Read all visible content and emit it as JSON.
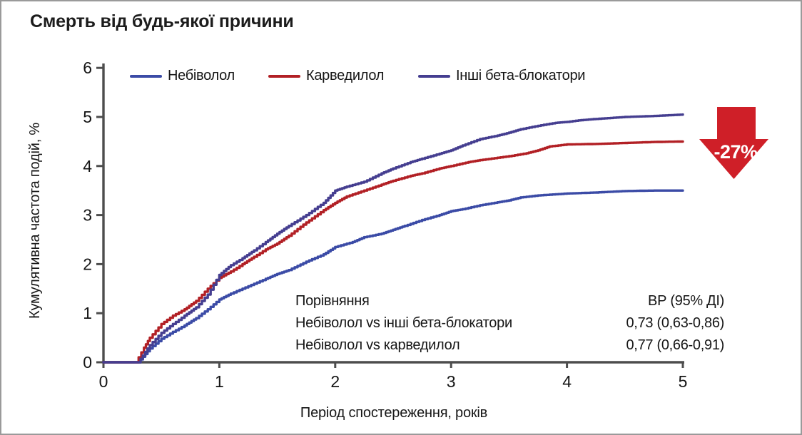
{
  "title": "Смерть від будь-якої причини",
  "chart_data": {
    "type": "line",
    "subtype": "cumulative-incidence-step-curves",
    "title": "Смерть від будь-якої причини",
    "xlabel": "Період спостереження, років",
    "ylabel": "Кумулятивна частота подій, %",
    "xlim": [
      0,
      5
    ],
    "ylim": [
      0,
      6
    ],
    "x_ticks": [
      0,
      1,
      2,
      3,
      4,
      5
    ],
    "y_ticks": [
      0,
      1,
      2,
      3,
      4,
      5,
      6
    ],
    "grid": false,
    "legend_position": "top-inside",
    "axis_color": "#4d4d4d",
    "series": [
      {
        "name": "Небіволол",
        "color": "#3b4ba6",
        "points": [
          [
            0,
            0
          ],
          [
            0.3,
            0
          ],
          [
            0.4,
            0.28
          ],
          [
            0.5,
            0.48
          ],
          [
            0.6,
            0.62
          ],
          [
            0.7,
            0.75
          ],
          [
            0.8,
            0.9
          ],
          [
            0.9,
            1.08
          ],
          [
            1.0,
            1.28
          ],
          [
            1.1,
            1.4
          ],
          [
            1.25,
            1.55
          ],
          [
            1.4,
            1.7
          ],
          [
            1.5,
            1.8
          ],
          [
            1.6,
            1.88
          ],
          [
            1.75,
            2.05
          ],
          [
            1.9,
            2.2
          ],
          [
            2.0,
            2.35
          ],
          [
            2.15,
            2.45
          ],
          [
            2.25,
            2.55
          ],
          [
            2.4,
            2.62
          ],
          [
            2.5,
            2.7
          ],
          [
            2.6,
            2.78
          ],
          [
            2.75,
            2.9
          ],
          [
            2.9,
            3.0
          ],
          [
            3.0,
            3.08
          ],
          [
            3.1,
            3.12
          ],
          [
            3.25,
            3.2
          ],
          [
            3.4,
            3.26
          ],
          [
            3.5,
            3.3
          ],
          [
            3.6,
            3.36
          ],
          [
            3.75,
            3.4
          ],
          [
            4.0,
            3.44
          ],
          [
            4.25,
            3.46
          ],
          [
            4.5,
            3.49
          ],
          [
            4.75,
            3.5
          ],
          [
            5.0,
            3.5
          ]
        ]
      },
      {
        "name": "Карведилол",
        "color": "#b22025",
        "points": [
          [
            0,
            0
          ],
          [
            0.28,
            0
          ],
          [
            0.35,
            0.3
          ],
          [
            0.4,
            0.5
          ],
          [
            0.5,
            0.78
          ],
          [
            0.6,
            0.95
          ],
          [
            0.7,
            1.08
          ],
          [
            0.8,
            1.25
          ],
          [
            0.9,
            1.5
          ],
          [
            1.0,
            1.72
          ],
          [
            1.1,
            1.85
          ],
          [
            1.2,
            2.0
          ],
          [
            1.3,
            2.15
          ],
          [
            1.4,
            2.3
          ],
          [
            1.5,
            2.42
          ],
          [
            1.6,
            2.58
          ],
          [
            1.75,
            2.85
          ],
          [
            1.9,
            3.1
          ],
          [
            2.0,
            3.25
          ],
          [
            2.1,
            3.38
          ],
          [
            2.25,
            3.5
          ],
          [
            2.4,
            3.62
          ],
          [
            2.5,
            3.7
          ],
          [
            2.65,
            3.8
          ],
          [
            2.75,
            3.85
          ],
          [
            2.9,
            3.95
          ],
          [
            3.0,
            4.0
          ],
          [
            3.15,
            4.08
          ],
          [
            3.25,
            4.12
          ],
          [
            3.5,
            4.2
          ],
          [
            3.65,
            4.26
          ],
          [
            3.75,
            4.32
          ],
          [
            3.85,
            4.4
          ],
          [
            4.0,
            4.44
          ],
          [
            4.25,
            4.45
          ],
          [
            4.5,
            4.47
          ],
          [
            4.75,
            4.49
          ],
          [
            5.0,
            4.5
          ]
        ]
      },
      {
        "name": "Інші бета-блокатори",
        "color": "#453e90",
        "points": [
          [
            0,
            0
          ],
          [
            0.3,
            0
          ],
          [
            0.4,
            0.35
          ],
          [
            0.5,
            0.6
          ],
          [
            0.6,
            0.78
          ],
          [
            0.7,
            0.95
          ],
          [
            0.8,
            1.12
          ],
          [
            0.9,
            1.38
          ],
          [
            1.0,
            1.78
          ],
          [
            1.1,
            1.98
          ],
          [
            1.2,
            2.12
          ],
          [
            1.3,
            2.28
          ],
          [
            1.4,
            2.45
          ],
          [
            1.5,
            2.62
          ],
          [
            1.6,
            2.78
          ],
          [
            1.75,
            3.0
          ],
          [
            1.9,
            3.25
          ],
          [
            2.0,
            3.5
          ],
          [
            2.1,
            3.58
          ],
          [
            2.25,
            3.68
          ],
          [
            2.4,
            3.85
          ],
          [
            2.5,
            3.95
          ],
          [
            2.65,
            4.08
          ],
          [
            2.75,
            4.15
          ],
          [
            2.9,
            4.25
          ],
          [
            3.0,
            4.32
          ],
          [
            3.1,
            4.42
          ],
          [
            3.25,
            4.55
          ],
          [
            3.4,
            4.62
          ],
          [
            3.5,
            4.68
          ],
          [
            3.6,
            4.75
          ],
          [
            3.75,
            4.82
          ],
          [
            3.9,
            4.88
          ],
          [
            4.0,
            4.9
          ],
          [
            4.1,
            4.93
          ],
          [
            4.25,
            4.96
          ],
          [
            4.5,
            5.0
          ],
          [
            4.75,
            5.02
          ],
          [
            5.0,
            5.05
          ]
        ]
      }
    ],
    "annotations": [
      "Порівняння: ВР (95% ДІ)",
      "Небіволол vs інші бета-блокатори: 0,73 (0,63-0,86)",
      "Небіволол vs карведилол: 0,77 (0,66-0,91)"
    ]
  },
  "annotation": {
    "header": {
      "label": "Порівняння",
      "value": "ВР (95% ДІ)"
    },
    "rows": [
      {
        "label": "Небіволол vs інші бета-блокатори",
        "value": "0,73 (0,63-0,86)"
      },
      {
        "label": "Небіволол vs карведилол",
        "value": "0,77 (0,66-0,91)"
      }
    ]
  },
  "arrow_badge": {
    "label": "-27%",
    "color": "#cf1f28",
    "text_color": "#ffffff"
  }
}
